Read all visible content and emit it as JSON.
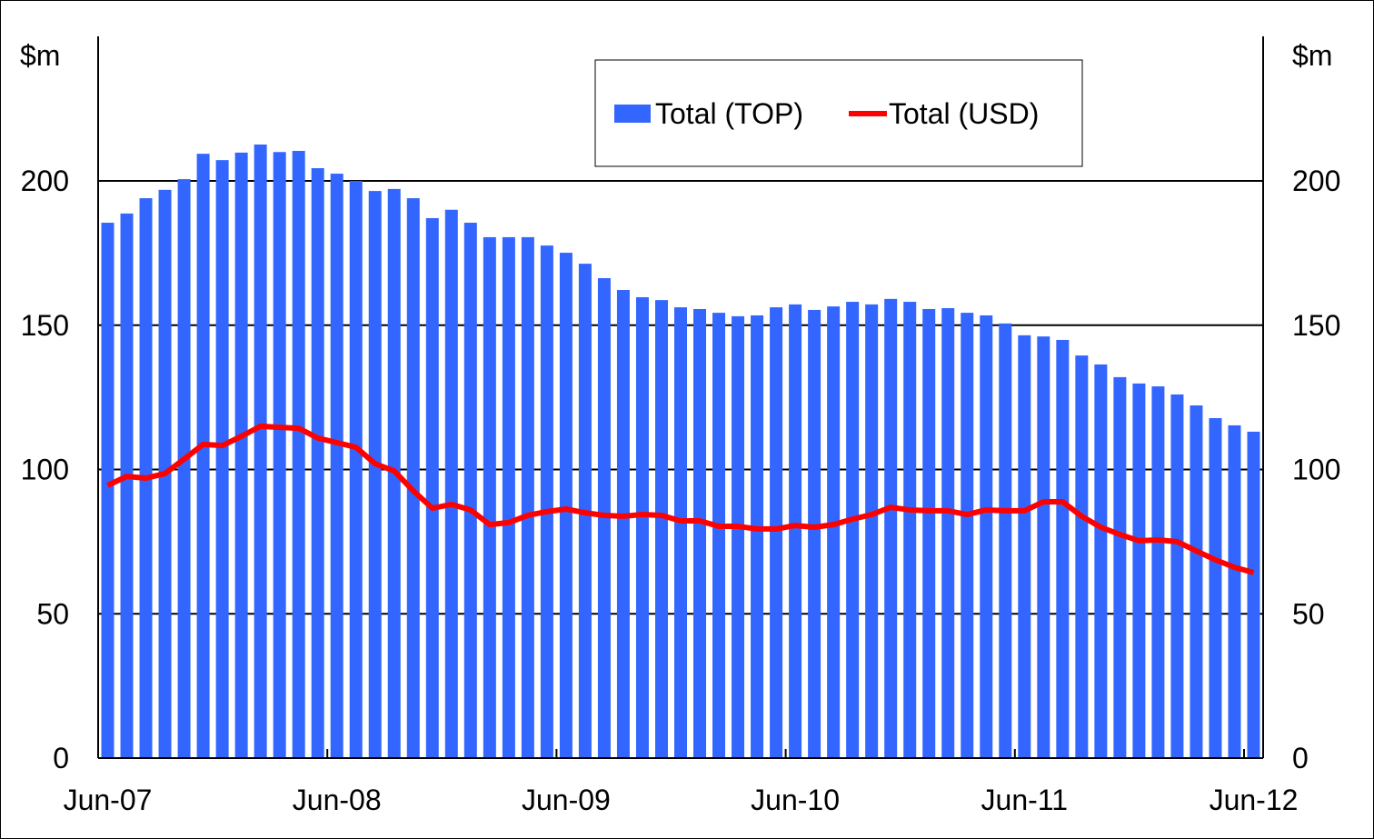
{
  "chart_data": {
    "type": "bar",
    "title": "",
    "y_unit_left": "$m",
    "y_unit_right": "$m",
    "ylim": [
      0,
      200
    ],
    "yticks": [
      0,
      50,
      100,
      150,
      200
    ],
    "grid": true,
    "legend_position": "top-center",
    "x_tick_labels": [
      "Jun-07",
      "Jun-08",
      "Jun-09",
      "Jun-10",
      "Jun-11",
      "Jun-12"
    ],
    "x_start": "Jun-07",
    "x_end": "Jun-12",
    "frequency": "monthly",
    "series": [
      {
        "name": "Total (TOP)",
        "type": "bar",
        "color": "#3366FF",
        "values": [
          185.5,
          188.7,
          194,
          196.9,
          200.6,
          209.4,
          207.2,
          209.8,
          212.6,
          210,
          210.4,
          204.4,
          202.5,
          200,
          196.5,
          197.2,
          194,
          187.1,
          190,
          185.5,
          180.5,
          180.5,
          180.5,
          177.6,
          175.1,
          171.3,
          166.3,
          162.2,
          159.7,
          158.7,
          156.2,
          155.6,
          154.3,
          153.1,
          153.4,
          156.2,
          157.2,
          155.3,
          156.5,
          158.1,
          157.2,
          159.1,
          158.1,
          155.6,
          155.9,
          154.3,
          153.4,
          150.6,
          146.5,
          146.1,
          144.9,
          139.5,
          136.4,
          132,
          129.8,
          128.8,
          126,
          122.2,
          117.8,
          115.3,
          113.1
        ]
      },
      {
        "name": "Total (USD)",
        "type": "line",
        "color": "#FF0000",
        "values": [
          94.5,
          97.6,
          97,
          98.6,
          103.6,
          108.7,
          108.3,
          111.5,
          115,
          114.6,
          114.3,
          110.9,
          109.3,
          107.7,
          102,
          99.5,
          92.6,
          86.6,
          87.9,
          86,
          80.9,
          81.6,
          84.1,
          85.4,
          86.3,
          85,
          84.1,
          83.8,
          84.4,
          84.1,
          82.2,
          82.2,
          80.3,
          80.3,
          79.4,
          79.4,
          80.6,
          80,
          80.9,
          82.8,
          84.4,
          86.9,
          86,
          85.7,
          85.7,
          84.4,
          86,
          85.7,
          85.7,
          88.8,
          88.8,
          83.8,
          80,
          77.5,
          75.3,
          75.6,
          75,
          71.8,
          68.7,
          66.1,
          64.3
        ]
      }
    ]
  }
}
